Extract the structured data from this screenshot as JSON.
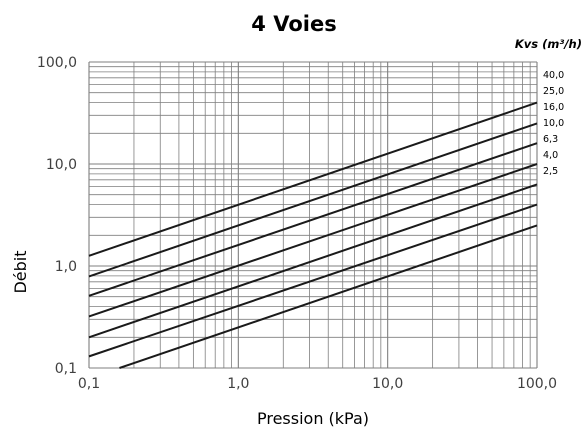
{
  "chart_data": {
    "type": "line",
    "title": "4 Voies",
    "legend_title": "Kvs (m³/h)",
    "xlabel": "Pression (kPa)",
    "ylabel": "Débit",
    "x_scale": "log",
    "y_scale": "log",
    "xlim": [
      0.1,
      100
    ],
    "ylim": [
      0.1,
      100
    ],
    "x_ticks": [
      "0,1",
      "1,0",
      "10,0",
      "100,0"
    ],
    "y_ticks": [
      "0,1",
      "1,0",
      "10,0",
      "100,0"
    ],
    "grid": true,
    "legend_position": "right",
    "series": [
      {
        "name": "40,0",
        "points": [
          [
            0.1,
            1.26
          ],
          [
            100,
            40.0
          ]
        ]
      },
      {
        "name": "25,0",
        "points": [
          [
            0.1,
            0.79
          ],
          [
            100,
            25.0
          ]
        ]
      },
      {
        "name": "16,0",
        "points": [
          [
            0.1,
            0.51
          ],
          [
            100,
            16.0
          ]
        ]
      },
      {
        "name": "10,0",
        "points": [
          [
            0.1,
            0.32
          ],
          [
            100,
            10.0
          ]
        ]
      },
      {
        "name": "6,3",
        "points": [
          [
            0.1,
            0.2
          ],
          [
            100,
            6.3
          ]
        ]
      },
      {
        "name": "4,0",
        "points": [
          [
            0.1,
            0.13
          ],
          [
            100,
            4.0
          ]
        ]
      },
      {
        "name": "2,5",
        "points": [
          [
            0.16,
            0.1
          ],
          [
            100,
            2.5
          ]
        ]
      }
    ]
  },
  "colors": {
    "line": "#1a1a1a",
    "grid": "#7f7f7f",
    "tick_text": "#404040"
  }
}
